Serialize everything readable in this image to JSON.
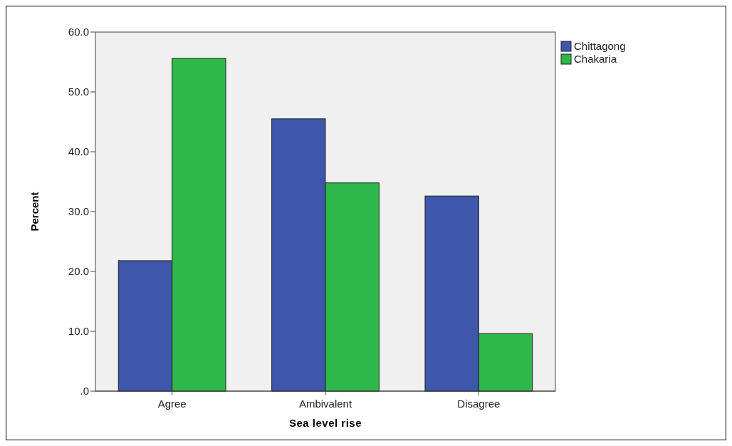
{
  "chart_data": {
    "type": "bar",
    "xlabel": "Sea level rise",
    "ylabel": "Percent",
    "categories": [
      "Agree",
      "Ambivalent",
      "Disagree"
    ],
    "series": [
      {
        "name": "Chittagong",
        "color": "#3e57aa",
        "values": [
          21.8,
          45.5,
          32.6
        ]
      },
      {
        "name": "Chakaria",
        "color": "#2eb74a",
        "values": [
          55.6,
          34.8,
          9.6
        ]
      }
    ],
    "ylim": [
      0,
      60
    ],
    "yticks": [
      {
        "value": 0,
        "label": ".0"
      },
      {
        "value": 10,
        "label": "10.0"
      },
      {
        "value": 20,
        "label": "20.0"
      },
      {
        "value": 30,
        "label": "30.0"
      },
      {
        "value": 40,
        "label": "40.0"
      },
      {
        "value": 50,
        "label": "50.0"
      },
      {
        "value": 60,
        "label": "60.0"
      }
    ],
    "grid": false,
    "legend": "top right"
  }
}
